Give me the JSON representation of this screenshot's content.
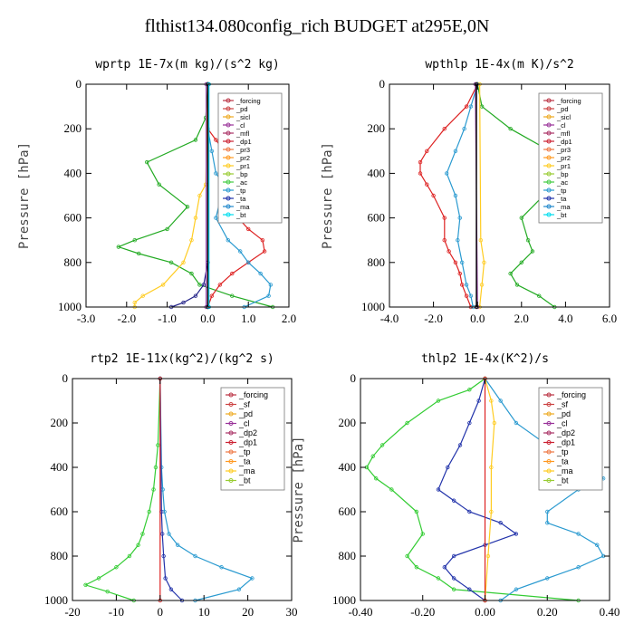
{
  "figure": {
    "suptitle": "flthist134.080config_rich  BUDGET at295E,0N"
  },
  "chart_data": [
    {
      "type": "line",
      "title": "wprtp  1E-7x(m kg)/(s^2 kg)",
      "ylabel": "Pressure [hPa]",
      "xlabel": "",
      "xlim": [
        -3.0,
        2.0
      ],
      "ylim": [
        0,
        1000
      ],
      "y_inverted": true,
      "xticks": [
        "-3.0",
        "-2.0",
        "-1.0",
        "0.0",
        "1.0",
        "2.0"
      ],
      "yticks": [
        "0",
        "200",
        "400",
        "600",
        "800",
        "1000"
      ],
      "legend": [
        "_forcing",
        "_pd",
        "_sicl",
        "_cl",
        "_mfl",
        "_dp1",
        "_pr3",
        "_pr2",
        "_pr1",
        "_bp",
        "_ac",
        "_tp",
        "_ta",
        "_ma",
        "_bt"
      ],
      "legend_position": "top-right",
      "series": [
        {
          "color": "#22aa22",
          "p": [
            0,
            150,
            250,
            350,
            450,
            550,
            650,
            700,
            730,
            760,
            800,
            850,
            900,
            950,
            1000
          ],
          "x": [
            0,
            -0.05,
            -0.3,
            -1.5,
            -1.2,
            -0.5,
            -1.0,
            -1.8,
            -2.2,
            -1.7,
            -0.9,
            -0.4,
            -0.2,
            0.6,
            1.6
          ]
        },
        {
          "color": "#dd2222",
          "p": [
            0,
            200,
            250,
            300,
            350,
            400,
            450,
            550,
            650,
            700,
            750,
            800,
            850,
            900,
            950,
            1000
          ],
          "x": [
            0,
            0,
            0.2,
            0.4,
            0.5,
            0.6,
            0.5,
            0.5,
            1.0,
            1.35,
            1.4,
            1.0,
            0.6,
            0.3,
            0.1,
            0
          ]
        },
        {
          "color": "#2a9ad0",
          "p": [
            0,
            200,
            300,
            400,
            450,
            600,
            700,
            750,
            800,
            850,
            900,
            950,
            1000
          ],
          "x": [
            0,
            0,
            0.1,
            0.2,
            0.4,
            0.2,
            0.5,
            0.8,
            1.0,
            1.3,
            1.55,
            1.5,
            0.9
          ]
        },
        {
          "color": "#ffcc22",
          "p": [
            0,
            450,
            500,
            600,
            700,
            800,
            900,
            950,
            980,
            1000
          ],
          "x": [
            0,
            -0.05,
            -0.2,
            -0.3,
            -0.4,
            -0.6,
            -1.1,
            -1.6,
            -1.8,
            -1.8
          ]
        },
        {
          "color": "#222288",
          "p": [
            0,
            800,
            900,
            950,
            980,
            1000
          ],
          "x": [
            0,
            0,
            -0.1,
            -0.3,
            -0.6,
            -0.9
          ]
        },
        {
          "color": "#9944aa",
          "p": [
            0,
            1000
          ],
          "x": [
            -0.04,
            -0.04
          ]
        },
        {
          "color": "#000000",
          "p": [
            0,
            1000
          ],
          "x": [
            0.0,
            0.0
          ]
        },
        {
          "color": "#00bbdd",
          "p": [
            0,
            1000
          ],
          "x": [
            0.03,
            0.03
          ]
        }
      ]
    },
    {
      "type": "line",
      "title": "wpthlp  1E-4x(m K)/s^2",
      "ylabel": "Pressure [hPa]",
      "xlabel": "",
      "xlim": [
        -4.0,
        6.0
      ],
      "ylim": [
        0,
        1000
      ],
      "y_inverted": true,
      "xticks": [
        "-4.0",
        "-2.0",
        "0.0",
        "2.0",
        "4.0",
        "6.0"
      ],
      "yticks": [
        "0",
        "200",
        "400",
        "600",
        "800",
        "1000"
      ],
      "legend": [
        "_forcing",
        "_pd",
        "_sicl",
        "_cl",
        "_mfl",
        "_dp1",
        "_pr3",
        "_pr2",
        "_pr1",
        "_bp",
        "_ac",
        "_tp",
        "_ta",
        "_ma",
        "_bt"
      ],
      "legend_position": "top-right",
      "series": [
        {
          "color": "#22aa22",
          "p": [
            0,
            100,
            200,
            300,
            350,
            400,
            450,
            500,
            600,
            700,
            750,
            800,
            850,
            900,
            950,
            1000
          ],
          "x": [
            0,
            0.2,
            1.5,
            3.3,
            3.8,
            4.0,
            3.8,
            3.0,
            2.0,
            2.3,
            2.5,
            2.0,
            1.5,
            1.8,
            2.8,
            3.5
          ]
        },
        {
          "color": "#dd2222",
          "p": [
            0,
            100,
            200,
            300,
            350,
            400,
            450,
            500,
            600,
            700,
            750,
            800,
            850,
            900,
            950,
            1000
          ],
          "x": [
            0,
            -0.5,
            -1.5,
            -2.3,
            -2.6,
            -2.6,
            -2.3,
            -2.0,
            -1.5,
            -1.5,
            -1.3,
            -1.0,
            -0.8,
            -0.7,
            -0.5,
            -0.3
          ]
        },
        {
          "color": "#2a9ad0",
          "p": [
            0,
            100,
            200,
            300,
            400,
            500,
            600,
            700,
            800,
            900,
            950,
            1000
          ],
          "x": [
            0,
            -0.3,
            -0.6,
            -1.0,
            -1.4,
            -1.0,
            -0.8,
            -0.9,
            -0.7,
            -0.5,
            -0.3,
            -0.2
          ]
        },
        {
          "color": "#ffcc22",
          "p": [
            0,
            700,
            800,
            900,
            1000
          ],
          "x": [
            0.1,
            0.15,
            0.3,
            0.2,
            0.1
          ]
        },
        {
          "color": "#9944aa",
          "p": [
            0,
            1000
          ],
          "x": [
            -0.1,
            0.0
          ]
        },
        {
          "color": "#000000",
          "p": [
            0,
            1000
          ],
          "x": [
            -0.05,
            -0.05
          ]
        }
      ]
    },
    {
      "type": "line",
      "title": "rtp2  1E-11x(kg^2)/(kg^2 s)",
      "ylabel": "",
      "xlabel": "",
      "xlim": [
        -20,
        30
      ],
      "ylim": [
        0,
        1000
      ],
      "y_inverted": true,
      "xticks": [
        "-20",
        "-10",
        "0",
        "10",
        "20",
        "30"
      ],
      "yticks": [
        "0",
        "200",
        "400",
        "600",
        "800",
        "1000"
      ],
      "legend": [
        "_forcing",
        "_sf",
        "_pd",
        "_cl",
        "_dp2",
        "_dp1",
        "_tp",
        "_ta",
        "_ma",
        "_bt"
      ],
      "legend_position": "top-right",
      "series": [
        {
          "color": "#33cc33",
          "p": [
            0,
            300,
            400,
            500,
            600,
            700,
            750,
            800,
            850,
            900,
            930,
            960,
            1000
          ],
          "x": [
            0,
            -0.5,
            -1,
            -1.5,
            -2.5,
            -4,
            -5,
            -7,
            -10,
            -14,
            -17,
            -12,
            -6
          ]
        },
        {
          "color": "#2a9ad0",
          "p": [
            0,
            400,
            500,
            600,
            700,
            750,
            800,
            850,
            900,
            950,
            1000
          ],
          "x": [
            0,
            0.3,
            0.6,
            1,
            2,
            4,
            8,
            14,
            21,
            18,
            8
          ]
        },
        {
          "color": "#2233aa",
          "p": [
            0,
            600,
            700,
            800,
            900,
            950,
            1000
          ],
          "x": [
            0,
            0.3,
            0.5,
            0.8,
            1.2,
            2.5,
            5
          ]
        },
        {
          "color": "#dd2222",
          "p": [
            0,
            1000
          ],
          "x": [
            0,
            0
          ]
        }
      ]
    },
    {
      "type": "line",
      "title": "thlp2  1E-4x(K^2)/s",
      "ylabel": "Pressure [hPa]",
      "xlabel": "",
      "xlim": [
        -0.4,
        0.4
      ],
      "ylim": [
        0,
        1000
      ],
      "y_inverted": true,
      "xticks": [
        "-0.40",
        "-0.20",
        "0.00",
        "0.20",
        "0.40"
      ],
      "yticks": [
        "0",
        "200",
        "400",
        "600",
        "800",
        "1000"
      ],
      "legend": [
        "_forcing",
        "_sf",
        "_pd",
        "_cl",
        "_dp2",
        "_dp1",
        "_tp",
        "_ta",
        "_ma",
        "_bt"
      ],
      "legend_position": "top-right",
      "series": [
        {
          "color": "#33cc33",
          "p": [
            0,
            50,
            100,
            200,
            300,
            350,
            400,
            450,
            500,
            600,
            700,
            800,
            850,
            900,
            950,
            1000
          ],
          "x": [
            0,
            -0.05,
            -0.15,
            -0.25,
            -0.33,
            -0.36,
            -0.38,
            -0.35,
            -0.3,
            -0.22,
            -0.2,
            -0.25,
            -0.22,
            -0.15,
            -0.1,
            0.3
          ]
        },
        {
          "color": "#2a9ad0",
          "p": [
            0,
            100,
            200,
            300,
            400,
            450,
            500,
            600,
            650,
            700,
            750,
            800,
            850,
            900,
            950,
            1000
          ],
          "x": [
            0,
            0.05,
            0.1,
            0.2,
            0.35,
            0.38,
            0.3,
            0.2,
            0.2,
            0.3,
            0.36,
            0.38,
            0.3,
            0.2,
            0.1,
            0.05
          ]
        },
        {
          "color": "#2233aa",
          "p": [
            0,
            100,
            200,
            300,
            400,
            500,
            550,
            600,
            650,
            700,
            750,
            800,
            850,
            900,
            950,
            1000
          ],
          "x": [
            0,
            -0.02,
            -0.05,
            -0.08,
            -0.12,
            -0.15,
            -0.1,
            -0.05,
            0.05,
            0.1,
            0.0,
            -0.1,
            -0.13,
            -0.1,
            -0.05,
            0
          ]
        },
        {
          "color": "#ffcc22",
          "p": [
            0,
            100,
            200,
            400,
            600,
            800,
            1000
          ],
          "x": [
            0,
            0.02,
            0.03,
            0.02,
            0.02,
            0.01,
            0
          ]
        },
        {
          "color": "#dd2222",
          "p": [
            0,
            1000
          ],
          "x": [
            0,
            0
          ]
        }
      ]
    }
  ]
}
